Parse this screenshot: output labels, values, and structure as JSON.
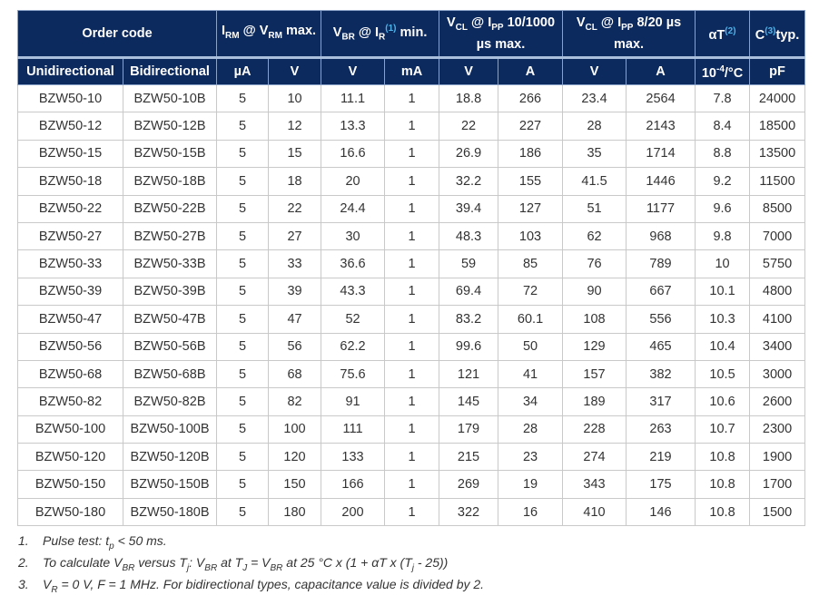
{
  "header_row1": [
    {
      "name": "order-code",
      "span": 2,
      "parts": [
        {
          "t": "Order code"
        }
      ]
    },
    {
      "name": "irm-vrm",
      "span": 2,
      "parts": [
        {
          "t": "I"
        },
        {
          "t": "RM",
          "s": "sub"
        },
        {
          "t": " @ V"
        },
        {
          "t": "RM",
          "s": "sub"
        },
        {
          "t": " max."
        }
      ]
    },
    {
      "name": "vbr-ir",
      "span": 2,
      "parts": [
        {
          "t": "V"
        },
        {
          "t": "BR",
          "s": "sub"
        },
        {
          "t": " @ I"
        },
        {
          "t": "R",
          "s": "sub"
        },
        {
          "t": "(1)",
          "s": "sup"
        },
        {
          "t": " min."
        }
      ]
    },
    {
      "name": "vcl-ipp-10-1000",
      "span": 2,
      "parts": [
        {
          "t": "V"
        },
        {
          "t": "CL",
          "s": "sub"
        },
        {
          "t": " @ I"
        },
        {
          "t": "PP",
          "s": "sub"
        },
        {
          "t": " 10/1000 µs max."
        }
      ]
    },
    {
      "name": "vcl-ipp-8-20",
      "span": 2,
      "parts": [
        {
          "t": "V"
        },
        {
          "t": "CL",
          "s": "sub"
        },
        {
          "t": " @ I"
        },
        {
          "t": "PP",
          "s": "sub"
        },
        {
          "t": " 8/20 µs max."
        }
      ]
    },
    {
      "name": "alpha-t",
      "span": 1,
      "parts": [
        {
          "t": "αT"
        },
        {
          "t": "(2)",
          "s": "sup"
        }
      ]
    },
    {
      "name": "capacitance",
      "span": 1,
      "parts": [
        {
          "t": "C"
        },
        {
          "t": "(3)",
          "s": "sup"
        },
        {
          "t": "typ."
        }
      ]
    }
  ],
  "header_row2": [
    [
      {
        "t": "Unidirectional"
      }
    ],
    [
      {
        "t": "Bidirectional"
      }
    ],
    [
      {
        "t": "µA"
      }
    ],
    [
      {
        "t": "V"
      }
    ],
    [
      {
        "t": "V"
      }
    ],
    [
      {
        "t": "mA"
      }
    ],
    [
      {
        "t": "V"
      }
    ],
    [
      {
        "t": "A"
      }
    ],
    [
      {
        "t": "V"
      }
    ],
    [
      {
        "t": "A"
      }
    ],
    [
      {
        "t": "10"
      },
      {
        "t": "-4",
        "s": "sup0"
      },
      {
        "t": "/°C"
      }
    ],
    [
      {
        "t": "pF"
      }
    ]
  ],
  "rows": [
    [
      "BZW50-10",
      "BZW50-10B",
      "5",
      "10",
      "11.1",
      "1",
      "18.8",
      "266",
      "23.4",
      "2564",
      "7.8",
      "24000"
    ],
    [
      "BZW50-12",
      "BZW50-12B",
      "5",
      "12",
      "13.3",
      "1",
      "22",
      "227",
      "28",
      "2143",
      "8.4",
      "18500"
    ],
    [
      "BZW50-15",
      "BZW50-15B",
      "5",
      "15",
      "16.6",
      "1",
      "26.9",
      "186",
      "35",
      "1714",
      "8.8",
      "13500"
    ],
    [
      "BZW50-18",
      "BZW50-18B",
      "5",
      "18",
      "20",
      "1",
      "32.2",
      "155",
      "41.5",
      "1446",
      "9.2",
      "11500"
    ],
    [
      "BZW50-22",
      "BZW50-22B",
      "5",
      "22",
      "24.4",
      "1",
      "39.4",
      "127",
      "51",
      "1177",
      "9.6",
      "8500"
    ],
    [
      "BZW50-27",
      "BZW50-27B",
      "5",
      "27",
      "30",
      "1",
      "48.3",
      "103",
      "62",
      "968",
      "9.8",
      "7000"
    ],
    [
      "BZW50-33",
      "BZW50-33B",
      "5",
      "33",
      "36.6",
      "1",
      "59",
      "85",
      "76",
      "789",
      "10",
      "5750"
    ],
    [
      "BZW50-39",
      "BZW50-39B",
      "5",
      "39",
      "43.3",
      "1",
      "69.4",
      "72",
      "90",
      "667",
      "10.1",
      "4800"
    ],
    [
      "BZW50-47",
      "BZW50-47B",
      "5",
      "47",
      "52",
      "1",
      "83.2",
      "60.1",
      "108",
      "556",
      "10.3",
      "4100"
    ],
    [
      "BZW50-56",
      "BZW50-56B",
      "5",
      "56",
      "62.2",
      "1",
      "99.6",
      "50",
      "129",
      "465",
      "10.4",
      "3400"
    ],
    [
      "BZW50-68",
      "BZW50-68B",
      "5",
      "68",
      "75.6",
      "1",
      "121",
      "41",
      "157",
      "382",
      "10.5",
      "3000"
    ],
    [
      "BZW50-82",
      "BZW50-82B",
      "5",
      "82",
      "91",
      "1",
      "145",
      "34",
      "189",
      "317",
      "10.6",
      "2600"
    ],
    [
      "BZW50-100",
      "BZW50-100B",
      "5",
      "100",
      "111",
      "1",
      "179",
      "28",
      "228",
      "263",
      "10.7",
      "2300"
    ],
    [
      "BZW50-120",
      "BZW50-120B",
      "5",
      "120",
      "133",
      "1",
      "215",
      "23",
      "274",
      "219",
      "10.8",
      "1900"
    ],
    [
      "BZW50-150",
      "BZW50-150B",
      "5",
      "150",
      "166",
      "1",
      "269",
      "19",
      "343",
      "175",
      "10.8",
      "1700"
    ],
    [
      "BZW50-180",
      "BZW50-180B",
      "5",
      "180",
      "200",
      "1",
      "322",
      "16",
      "410",
      "146",
      "10.8",
      "1500"
    ]
  ],
  "notes": [
    {
      "num": "1.",
      "parts": [
        {
          "t": "Pulse test: t"
        },
        {
          "t": "p",
          "s": "sub"
        },
        {
          "t": " < 50 ms."
        }
      ]
    },
    {
      "num": "2.",
      "parts": [
        {
          "t": "To calculate V"
        },
        {
          "t": "BR",
          "s": "sub"
        },
        {
          "t": " versus T"
        },
        {
          "t": "j",
          "s": "sub"
        },
        {
          "t": ": V"
        },
        {
          "t": "BR",
          "s": "sub"
        },
        {
          "t": " at T"
        },
        {
          "t": "J",
          "s": "sub"
        },
        {
          "t": " = V"
        },
        {
          "t": "BR",
          "s": "sub"
        },
        {
          "t": " at 25 °C x (1 + αT x (T"
        },
        {
          "t": "j",
          "s": "sub"
        },
        {
          "t": " - 25))"
        }
      ]
    },
    {
      "num": "3.",
      "parts": [
        {
          "t": "V"
        },
        {
          "t": "R",
          "s": "sub"
        },
        {
          "t": " = 0 V, F = 1 MHz. For bidirectional types, capacitance value is divided by 2."
        }
      ]
    }
  ]
}
